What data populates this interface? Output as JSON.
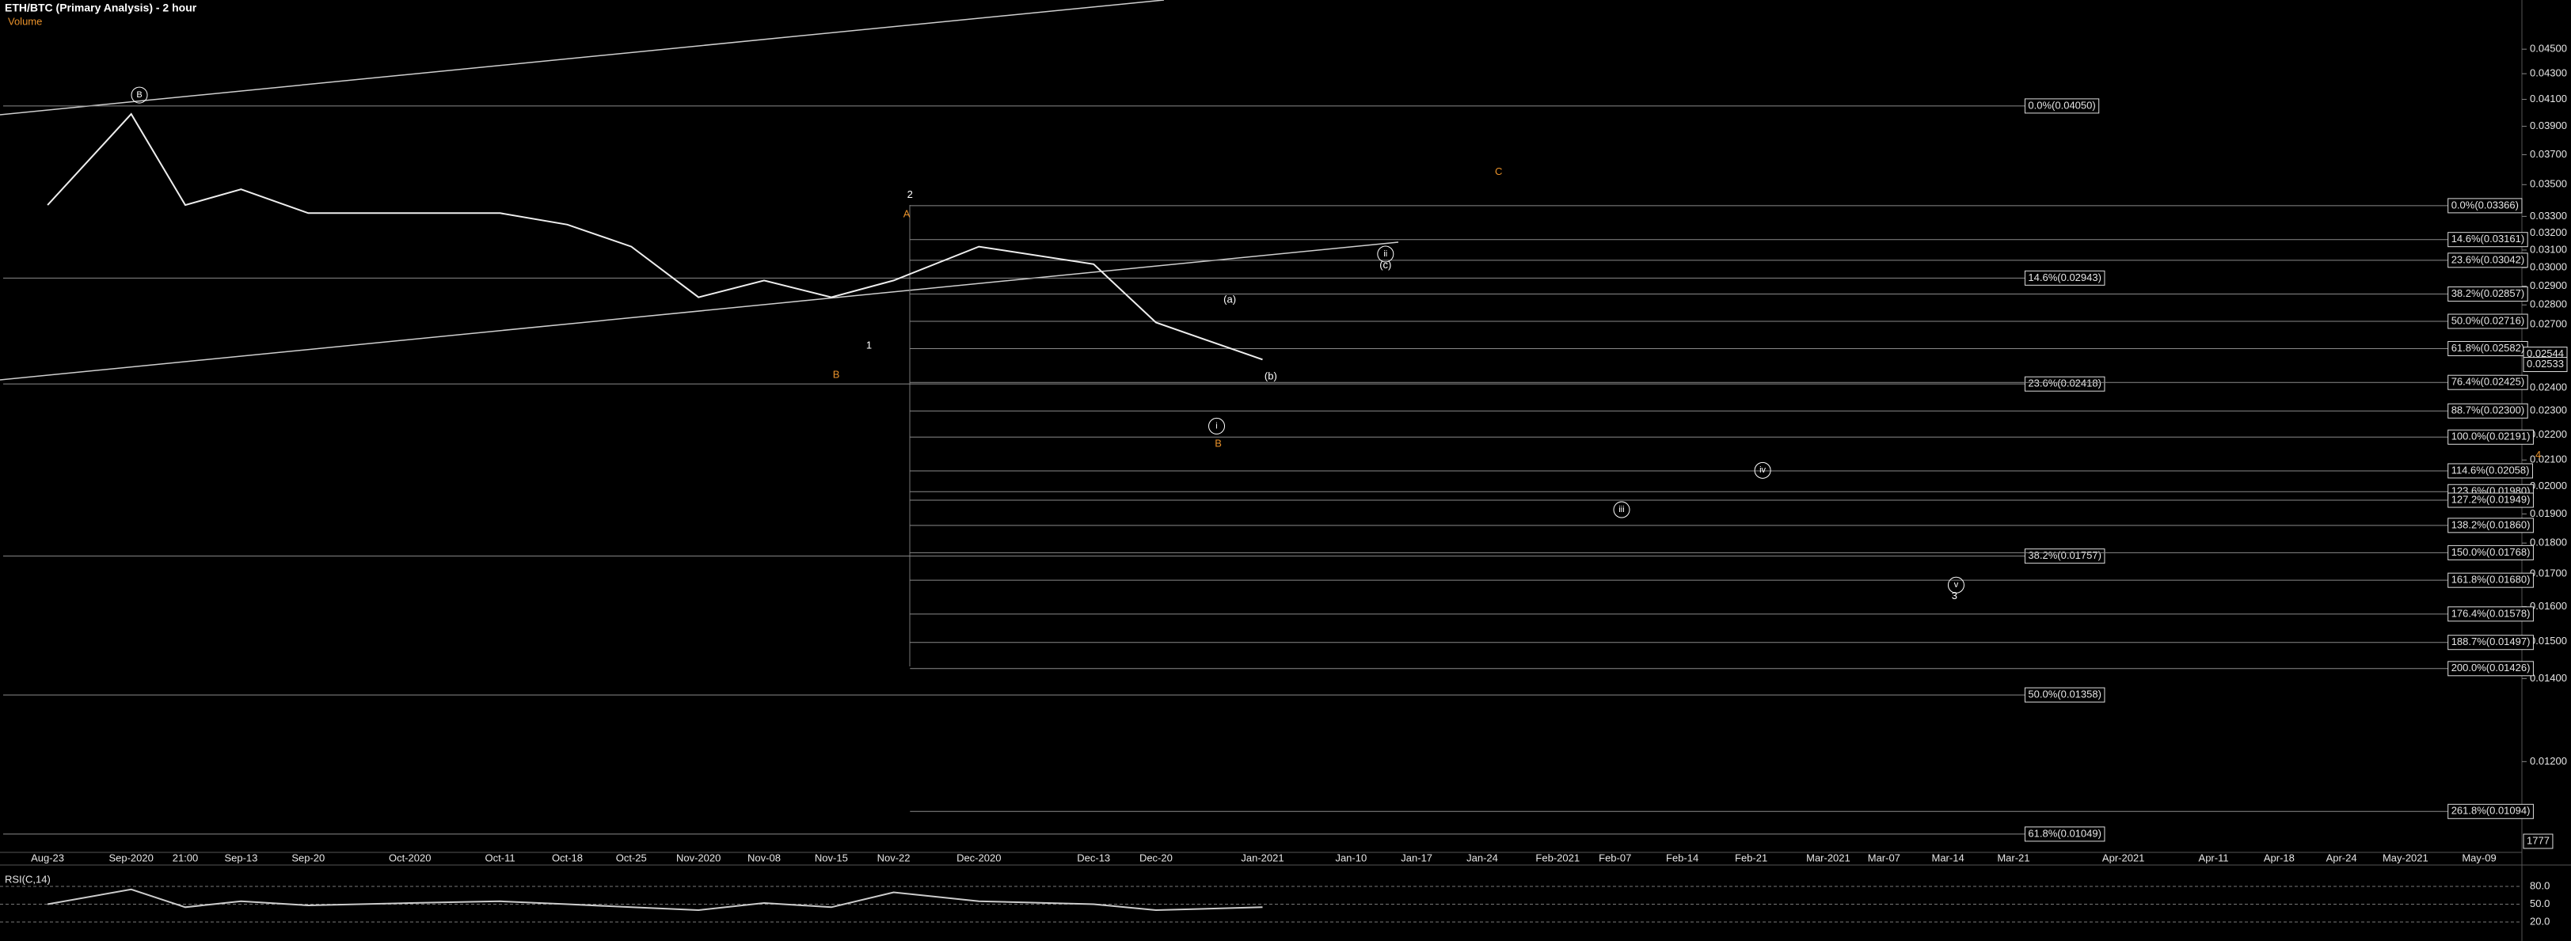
{
  "header": {
    "title": "ETH/BTC (Primary Analysis) - 2 hour",
    "volume_label": "Volume"
  },
  "chart_data": [
    {
      "type": "line",
      "scale": "log",
      "color": "#eeeeee",
      "categories": [
        "Aug-23",
        "Sep-2020",
        "21:00",
        "Sep-13",
        "Sep-20",
        "Oct-2020",
        "Oct-11",
        "Oct-18",
        "Oct-25",
        "Nov-2020",
        "Nov-08",
        "Nov-15",
        "Nov-22",
        "Dec-2020",
        "Dec-13",
        "Dec-20",
        "Jan-2021",
        "Jan-10",
        "Jan-17",
        "Jan-24",
        "Feb-2021",
        "Feb-07",
        "Feb-14",
        "Feb-21",
        "Mar-2021",
        "Mar-07",
        "Mar-14",
        "Mar-21",
        "Apr-2021",
        "Apr-11",
        "Apr-18",
        "Apr-24",
        "May-2021",
        "May-09"
      ],
      "values": [
        0.0337,
        0.0399,
        0.0337,
        0.0347,
        0.0332,
        0.0332,
        0.0332,
        0.0325,
        0.0312,
        0.0284,
        0.0293,
        0.0284,
        0.0293,
        0.0312,
        0.0302,
        0.0271,
        0.0253,
        null,
        null,
        null,
        null,
        null,
        null,
        null,
        null,
        null,
        null,
        null,
        null,
        null,
        null,
        null,
        null,
        null
      ],
      "ylim": [
        0.0102,
        0.0493
      ],
      "yticks": [
        {
          "value": 0.045,
          "label": "0.04500"
        },
        {
          "value": 0.043,
          "label": "0.04300"
        },
        {
          "value": 0.041,
          "label": "0.04100"
        },
        {
          "value": 0.039,
          "label": "0.03900"
        },
        {
          "value": 0.037,
          "label": "0.03700"
        },
        {
          "value": 0.035,
          "label": "0.03500"
        },
        {
          "value": 0.033,
          "label": "0.03300"
        },
        {
          "value": 0.032,
          "label": "0.03200"
        },
        {
          "value": 0.031,
          "label": "0.03100"
        },
        {
          "value": 0.03,
          "label": "0.03000"
        },
        {
          "value": 0.029,
          "label": "0.02900"
        },
        {
          "value": 0.028,
          "label": "0.02800"
        },
        {
          "value": 0.027,
          "label": "0.02700"
        },
        {
          "value": 0.024,
          "label": "0.02400"
        },
        {
          "value": 0.023,
          "label": "0.02300"
        },
        {
          "value": 0.022,
          "label": "0.02200"
        },
        {
          "value": 0.021,
          "label": "0.02100"
        },
        {
          "value": 0.02,
          "label": "0.02000"
        },
        {
          "value": 0.019,
          "label": "0.01900"
        },
        {
          "value": 0.018,
          "label": "0.01800"
        },
        {
          "value": 0.017,
          "label": "0.01700"
        },
        {
          "value": 0.016,
          "label": "0.01600"
        },
        {
          "value": 0.015,
          "label": "0.01500"
        },
        {
          "value": 0.014,
          "label": "0.01400"
        },
        {
          "value": 0.012,
          "label": "0.01200"
        }
      ],
      "price_labels": [
        {
          "value": 0.02544,
          "label": "0.02544"
        },
        {
          "value": 0.02533,
          "label": "0.02533"
        }
      ],
      "volume_tick": "1777",
      "fib_levels_a": [
        {
          "value": 0.0405,
          "label": "0.0%(0.04050)"
        },
        {
          "value": 0.02943,
          "label": "14.6%(0.02943)"
        },
        {
          "value": 0.02418,
          "label": "23.6%(0.02418)"
        },
        {
          "value": 0.01757,
          "label": "38.2%(0.01757)"
        },
        {
          "value": 0.01358,
          "label": "50.0%(0.01358)"
        },
        {
          "value": 0.01049,
          "label": "61.8%(0.01049)"
        }
      ],
      "fib_levels_b": [
        {
          "value": 0.03366,
          "label": "0.0%(0.03366)"
        },
        {
          "value": 0.03161,
          "label": "14.6%(0.03161)"
        },
        {
          "value": 0.03042,
          "label": "23.6%(0.03042)"
        },
        {
          "value": 0.02857,
          "label": "38.2%(0.02857)"
        },
        {
          "value": 0.02716,
          "label": "50.0%(0.02716)"
        },
        {
          "value": 0.02582,
          "label": "61.8%(0.02582)"
        },
        {
          "value": 0.02425,
          "label": "76.4%(0.02425)"
        },
        {
          "value": 0.023,
          "label": "88.7%(0.02300)"
        },
        {
          "value": 0.02191,
          "label": "100.0%(0.02191)"
        },
        {
          "value": 0.02058,
          "label": "114.6%(0.02058)"
        },
        {
          "value": 0.0198,
          "label": "123.6%(0.01980)"
        },
        {
          "value": 0.01949,
          "label": "127.2%(0.01949)"
        },
        {
          "value": 0.0186,
          "label": "138.2%(0.01860)"
        },
        {
          "value": 0.01768,
          "label": "150.0%(0.01768)"
        },
        {
          "value": 0.0168,
          "label": "161.8%(0.01680)"
        },
        {
          "value": 0.01578,
          "label": "176.4%(0.01578)"
        },
        {
          "value": 0.01497,
          "label": "188.7%(0.01497)"
        },
        {
          "value": 0.01426,
          "label": "200.0%(0.01426)"
        },
        {
          "value": 0.01094,
          "label": "261.8%(0.01094)"
        }
      ],
      "wave_labels": [
        {
          "text": "B",
          "color": "#ffffff",
          "circled": true
        },
        {
          "text": "A",
          "color": "#e8912a",
          "circled": false
        },
        {
          "text": "2",
          "color": "#ffffff",
          "circled": false
        },
        {
          "text": "1",
          "color": "#ffffff",
          "circled": false
        },
        {
          "text": "B",
          "color": "#e8912a",
          "circled": false
        },
        {
          "text": "i",
          "color": "#ffffff",
          "circled": true
        },
        {
          "text": "B",
          "color": "#e8912a",
          "circled": false
        },
        {
          "text": "(a)",
          "color": "#ffffff",
          "circled": false
        },
        {
          "text": "(b)",
          "color": "#ffffff",
          "circled": false
        },
        {
          "text": "ii",
          "color": "#ffffff",
          "circled": true
        },
        {
          "text": "(c)",
          "color": "#ffffff",
          "circled": false
        },
        {
          "text": "C",
          "color": "#e8912a",
          "circled": false
        },
        {
          "text": "iii",
          "color": "#ffffff",
          "circled": true
        },
        {
          "text": "iv",
          "color": "#ffffff",
          "circled": true
        },
        {
          "text": "v",
          "color": "#ffffff",
          "circled": true
        },
        {
          "text": "3",
          "color": "#ffffff",
          "circled": false
        },
        {
          "text": "4",
          "color": "#e8912a",
          "circled": false
        }
      ]
    },
    {
      "type": "line",
      "title": "RSI(C,14)",
      "color": "#cccccc",
      "values": [
        50,
        75,
        45,
        55,
        48,
        52,
        55,
        50,
        45,
        40,
        52,
        45,
        70,
        55,
        50,
        40,
        45,
        null,
        null,
        null,
        null,
        null,
        null,
        null,
        null,
        null,
        null,
        null,
        null,
        null,
        null,
        null,
        null,
        null
      ],
      "ylim": [
        0,
        100
      ],
      "yticks": [
        {
          "value": 80,
          "label": "80.0"
        },
        {
          "value": 50,
          "label": "50.0"
        },
        {
          "value": 20,
          "label": "20.0"
        }
      ]
    }
  ]
}
